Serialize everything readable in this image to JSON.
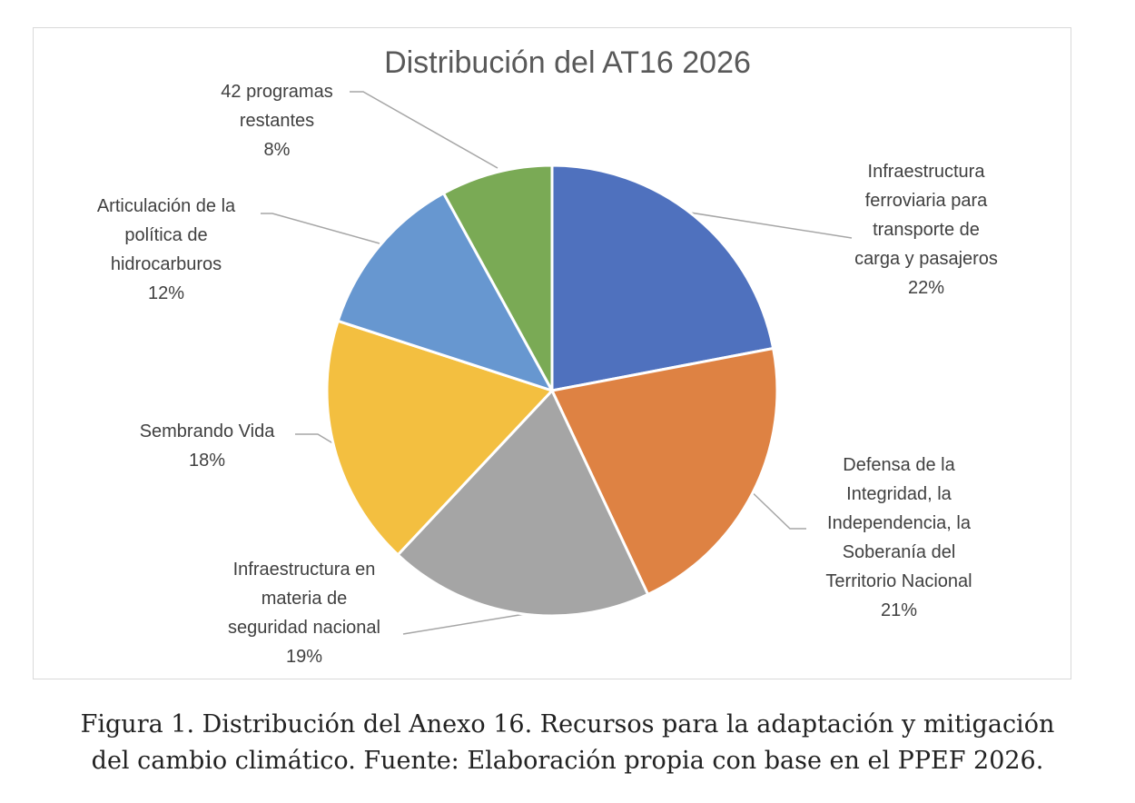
{
  "chart_data": {
    "type": "pie",
    "title": "Distribución del AT16 2026",
    "slices": [
      {
        "name_lines": [
          "Infraestructura",
          "ferroviaria para",
          "transporte de",
          "carga y pasajeros"
        ],
        "percent_label": "22%",
        "value": 22,
        "color": "#4f71be"
      },
      {
        "name_lines": [
          "Defensa de la",
          "Integridad, la",
          "Independencia, la",
          "Soberanía del",
          "Territorio Nacional"
        ],
        "percent_label": "21%",
        "value": 21,
        "color": "#de8243"
      },
      {
        "name_lines": [
          "Infraestructura en",
          "materia de",
          "seguridad nacional"
        ],
        "percent_label": "19%",
        "value": 19,
        "color": "#a5a5a5"
      },
      {
        "name_lines": [
          "Sembrando Vida"
        ],
        "percent_label": "18%",
        "value": 18,
        "color": "#f3bf40"
      },
      {
        "name_lines": [
          "Articulación de la",
          "política de",
          "hidrocarburos"
        ],
        "percent_label": "12%",
        "value": 12,
        "color": "#6797d0"
      },
      {
        "name_lines": [
          "42 programas",
          "restantes"
        ],
        "percent_label": "8%",
        "value": 8,
        "color": "#7aaa55"
      }
    ],
    "legend": "none",
    "data_labels": "outside with leader lines"
  },
  "caption": {
    "lines": [
      "Figura 1. Distribución del Anexo 16. Recursos para la adaptación y mitigación",
      "del cambio climático. Fuente: Elaboración propia con base en el PPEF 2026."
    ]
  }
}
